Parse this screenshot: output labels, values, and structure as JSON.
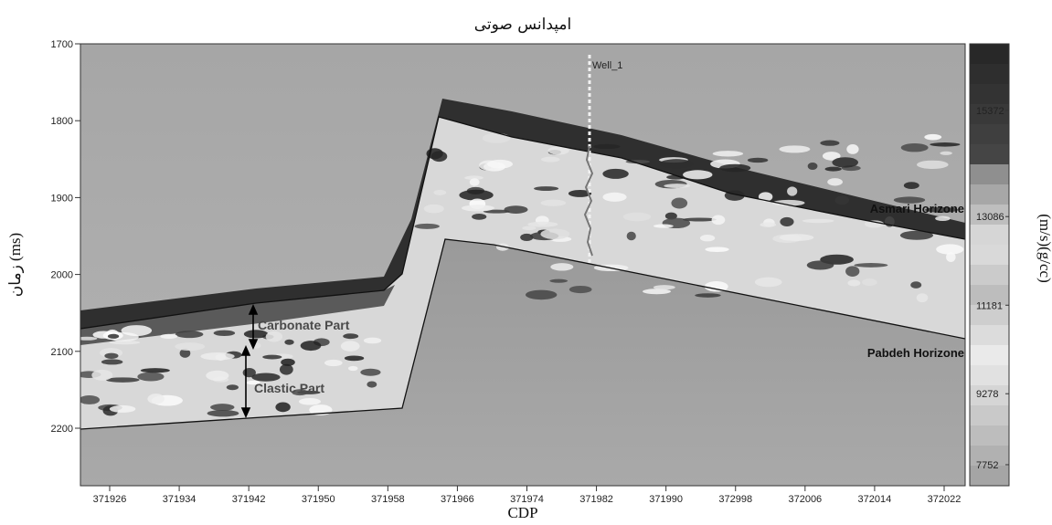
{
  "chart_data": {
    "type": "heatmap",
    "title": "امپدانس صوتی",
    "xlabel": "CDP",
    "ylabel": "زمان (ms)",
    "colorbar_label": "(m/s)(g/cc)",
    "x_ticks": [
      "371926",
      "371934",
      "371942",
      "371950",
      "371958",
      "371966",
      "371974",
      "371982",
      "371990",
      "372998",
      "372006",
      "372014",
      "372022"
    ],
    "y_ticks": [
      "1700",
      "1800",
      "1900",
      "2000",
      "2100",
      "2200"
    ],
    "colorbar_ticks": [
      "15372",
      "13086",
      "11181",
      "9278",
      "7752"
    ],
    "well_label": "Well_1",
    "annotations": [
      "Asmari Horizone",
      "Pabdeh Horizone",
      "Carbonate Part",
      "Clastic Part"
    ],
    "colors": {
      "background_model": "#a9a9a9",
      "dark": "#2b2b2b",
      "light": "#e8e8e8"
    }
  }
}
